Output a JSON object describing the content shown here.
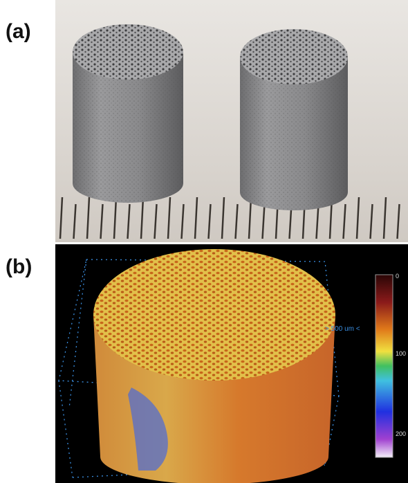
{
  "panels": [
    {
      "label": "(a)"
    },
    {
      "label": "(b)",
      "scale_label": "> 500 um <",
      "colorbar_ticks": [
        "0",
        "100",
        "200"
      ]
    }
  ]
}
